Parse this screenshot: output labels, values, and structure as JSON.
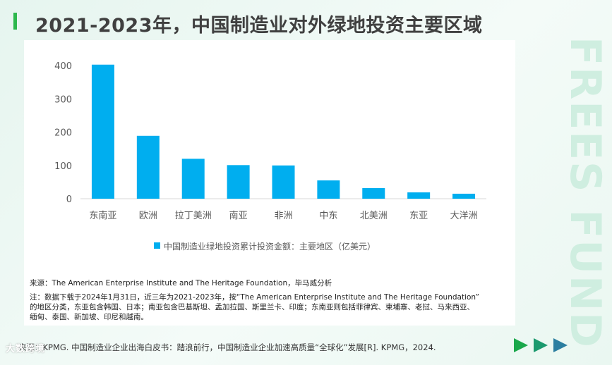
{
  "page": {
    "title": "2021-2023年，中国制造业对外绿地投资主要区域",
    "watermark": "FREES FUND",
    "footer_source": "来源：KPMG. 中国制造业企业出海白皮书：踏浪前行，中国制造业企业加速高质量“全球化”发展[R]. KPMG，2024.",
    "logo_text": "大数跨境"
  },
  "chart_data": {
    "type": "bar",
    "categories": [
      "东南亚",
      "欧洲",
      "拉丁美洲",
      "南亚",
      "非洲",
      "中东",
      "北美洲",
      "东亚",
      "大洋洲"
    ],
    "series": [
      {
        "name": "中国制造业绿地投资累计投资金额：主要地区（亿美元）",
        "values": [
          403,
          189,
          120,
          101,
          100,
          55,
          32,
          19,
          15
        ]
      }
    ],
    "yticks": [
      0,
      100,
      200,
      300,
      400
    ],
    "ylim": [
      0,
      430
    ],
    "grid": false,
    "legend_position": "bottom",
    "color": "#00aeef"
  },
  "notes": {
    "source": "来源：The American Enterprise Institute and The Heritage Foundation，毕马威分析",
    "note_line1": "注：数据下载于2024年1月31日，近三年为2021-2023年，按“The American Enterprise Institute and The Heritage Foundation”",
    "note_line2": "的地区分类，东亚包含韩国、日本；南亚包含巴基斯坦、孟加拉国、斯里兰卡、印度；东南亚则包括菲律宾、柬埔寨、老挝、马来西亚、",
    "note_line3": "缅甸、泰国、新加坡、印尼和越南。"
  },
  "colors": {
    "accent_green": "#2db84d",
    "arrow_1": "#1aa84b",
    "arrow_2": "#1b9a6e",
    "arrow_3": "#2b7ea0"
  }
}
